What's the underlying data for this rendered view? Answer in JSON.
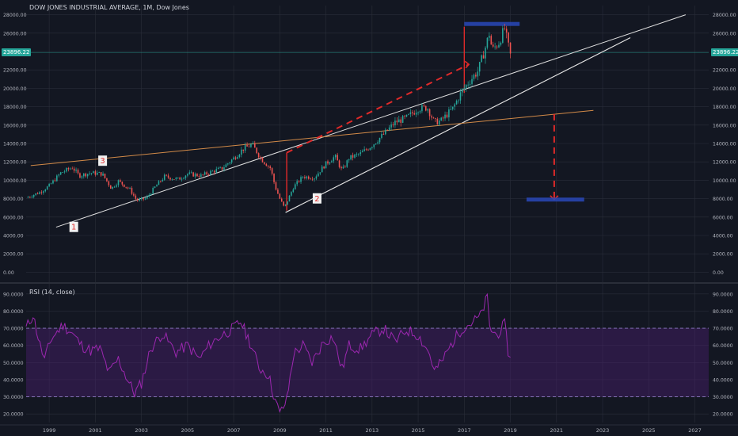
{
  "header": {
    "title": "DOW JONES INDUSTRIAL AVERAGE, 1M, Dow Jones",
    "rsi_title": "RSI (14, close)",
    "last_price": "23896.22"
  },
  "colors": {
    "background": "#131722",
    "grid": "#2a2e39",
    "text": "#b2b5be",
    "up": "#26a69a",
    "down": "#ef5350",
    "trend_white": "#e0e0e0",
    "trend_orange": "#d28a48",
    "annotation_red": "#e02a2a",
    "target_blue": "#2948b8",
    "rsi_line": "#9c27b0",
    "rsi_band": "#4a1f6e",
    "price_badge": "#26a69a"
  },
  "chart_data": [
    {
      "type": "candlestick",
      "title": "DOW JONES INDUSTRIAL AVERAGE, 1M, Dow Jones",
      "interval": "1M",
      "x_tick_labels": [
        "1999",
        "2001",
        "2003",
        "2005",
        "2007",
        "2009",
        "2011",
        "2013",
        "2015",
        "2017",
        "2019",
        "2021",
        "2023",
        "2025",
        "2027"
      ],
      "xlim": [
        1998.0,
        2027.6
      ],
      "y_tick_labels": [
        "0.00",
        "2000.00",
        "4000.00",
        "6000.00",
        "8000.00",
        "10000.00",
        "12000.00",
        "14000.00",
        "16000.00",
        "18000.00",
        "20000.00",
        "22000.00",
        "24000.00",
        "26000.00",
        "28000.00"
      ],
      "ylim": [
        -1000,
        29000
      ],
      "grid": true,
      "last_price": 23896.22,
      "price_path": [
        [
          1998.0,
          8100
        ],
        [
          1998.6,
          8700
        ],
        [
          1999.0,
          9400
        ],
        [
          1999.5,
          10800
        ],
        [
          2000.0,
          11400
        ],
        [
          2000.3,
          10500
        ],
        [
          2000.8,
          10800
        ],
        [
          2001.3,
          10700
        ],
        [
          2001.7,
          9100
        ],
        [
          2002.0,
          9900
        ],
        [
          2002.5,
          9000
        ],
        [
          2002.8,
          7800
        ],
        [
          2003.2,
          8000
        ],
        [
          2003.6,
          9300
        ],
        [
          2004.0,
          10400
        ],
        [
          2004.6,
          10100
        ],
        [
          2005.0,
          10700
        ],
        [
          2005.6,
          10500
        ],
        [
          2006.0,
          10900
        ],
        [
          2006.5,
          11300
        ],
        [
          2007.0,
          12400
        ],
        [
          2007.4,
          13400
        ],
        [
          2007.8,
          13900
        ],
        [
          2008.2,
          12300
        ],
        [
          2008.6,
          11300
        ],
        [
          2008.8,
          9300
        ],
        [
          2009.0,
          8000
        ],
        [
          2009.2,
          7000
        ],
        [
          2009.6,
          9300
        ],
        [
          2010.0,
          10400
        ],
        [
          2010.5,
          10300
        ],
        [
          2011.0,
          11800
        ],
        [
          2011.4,
          12600
        ],
        [
          2011.7,
          11000
        ],
        [
          2012.0,
          12400
        ],
        [
          2012.5,
          12900
        ],
        [
          2013.0,
          13800
        ],
        [
          2013.5,
          15000
        ],
        [
          2014.0,
          16300
        ],
        [
          2014.5,
          16800
        ],
        [
          2015.0,
          17800
        ],
        [
          2015.4,
          17900
        ],
        [
          2015.7,
          16300
        ],
        [
          2016.0,
          16500
        ],
        [
          2016.5,
          17800
        ],
        [
          2016.9,
          19700
        ],
        [
          2017.2,
          20700
        ],
        [
          2017.6,
          21900
        ],
        [
          2017.9,
          24300
        ],
        [
          2018.1,
          26100
        ],
        [
          2018.2,
          24100
        ],
        [
          2018.5,
          25000
        ],
        [
          2018.75,
          26500
        ],
        [
          2018.9,
          24700
        ],
        [
          2019.0,
          23600
        ]
      ],
      "annotations": {
        "labels": [
          {
            "text": "1",
            "x": 2000.05,
            "y": 4800
          },
          {
            "text": "2",
            "x": 2010.6,
            "y": 7900
          },
          {
            "text": "3",
            "x": 2001.3,
            "y": 12000
          }
        ],
        "trendlines_white": [
          [
            [
              1999.3,
              4900
            ],
            [
              2026.6,
              28000
            ]
          ],
          [
            [
              2009.25,
              6500
            ],
            [
              2024.2,
              25500
            ]
          ],
          [
            [
              2009.25,
              6500
            ],
            [
              2024.2,
              25500
            ]
          ]
        ],
        "support_line_orange": [
          [
            1998.2,
            11600
          ],
          [
            2022.6,
            17600
          ]
        ],
        "red_measured_move": {
          "vertical_2009": [
            [
              2009.3,
              6700
            ],
            [
              2009.3,
              13000
            ]
          ],
          "dashed_up": [
            [
              2009.3,
              13000
            ],
            [
              2017.2,
              22600
            ]
          ],
          "vertical_2017": [
            [
              2017.0,
              19500
            ],
            [
              2017.0,
              26700
            ]
          ],
          "dashed_down": [
            [
              2020.9,
              17200
            ],
            [
              2020.9,
              7900
            ]
          ]
        },
        "blue_targets": [
          [
            [
              2017.0,
              27000
            ],
            [
              2019.4,
              27000
            ]
          ],
          [
            [
              2019.7,
              7900
            ],
            [
              2022.2,
              7900
            ]
          ]
        ]
      }
    },
    {
      "type": "line",
      "title": "RSI (14, close)",
      "y_tick_labels": [
        "20.0000",
        "30.0000",
        "40.0000",
        "50.0000",
        "60.0000",
        "70.0000",
        "80.0000",
        "90.0000"
      ],
      "ylim": [
        15,
        95
      ],
      "bands": [
        30,
        70
      ],
      "series": [
        {
          "name": "RSI (14, close)",
          "points": [
            [
              1998.0,
              70
            ],
            [
              1998.3,
              78
            ],
            [
              1998.6,
              60
            ],
            [
              1998.8,
              52
            ],
            [
              1999.1,
              64
            ],
            [
              1999.6,
              72
            ],
            [
              2000.0,
              67
            ],
            [
              2000.4,
              60
            ],
            [
              2000.8,
              57
            ],
            [
              2001.2,
              58
            ],
            [
              2001.6,
              44
            ],
            [
              2002.0,
              52
            ],
            [
              2002.4,
              40
            ],
            [
              2002.7,
              32
            ],
            [
              2003.0,
              38
            ],
            [
              2003.4,
              58
            ],
            [
              2003.9,
              67
            ],
            [
              2004.5,
              56
            ],
            [
              2005.0,
              60
            ],
            [
              2005.5,
              52
            ],
            [
              2006.0,
              61
            ],
            [
              2006.5,
              66
            ],
            [
              2007.0,
              70
            ],
            [
              2007.3,
              74
            ],
            [
              2007.7,
              62
            ],
            [
              2008.1,
              47
            ],
            [
              2008.5,
              43
            ],
            [
              2008.8,
              28
            ],
            [
              2009.0,
              20
            ],
            [
              2009.3,
              28
            ],
            [
              2009.6,
              55
            ],
            [
              2010.0,
              60
            ],
            [
              2010.4,
              50
            ],
            [
              2010.9,
              62
            ],
            [
              2011.3,
              65
            ],
            [
              2011.7,
              46
            ],
            [
              2012.0,
              60
            ],
            [
              2012.5,
              58
            ],
            [
              2013.0,
              66
            ],
            [
              2013.5,
              70
            ],
            [
              2014.0,
              62
            ],
            [
              2014.5,
              69
            ],
            [
              2015.0,
              66
            ],
            [
              2015.5,
              55
            ],
            [
              2015.7,
              45
            ],
            [
              2016.0,
              50
            ],
            [
              2016.5,
              62
            ],
            [
              2016.9,
              70
            ],
            [
              2017.3,
              73
            ],
            [
              2017.7,
              77
            ],
            [
              2018.0,
              88
            ],
            [
              2018.1,
              70
            ],
            [
              2018.4,
              66
            ],
            [
              2018.75,
              72
            ],
            [
              2018.9,
              57
            ],
            [
              2019.0,
              53
            ]
          ]
        }
      ]
    }
  ]
}
